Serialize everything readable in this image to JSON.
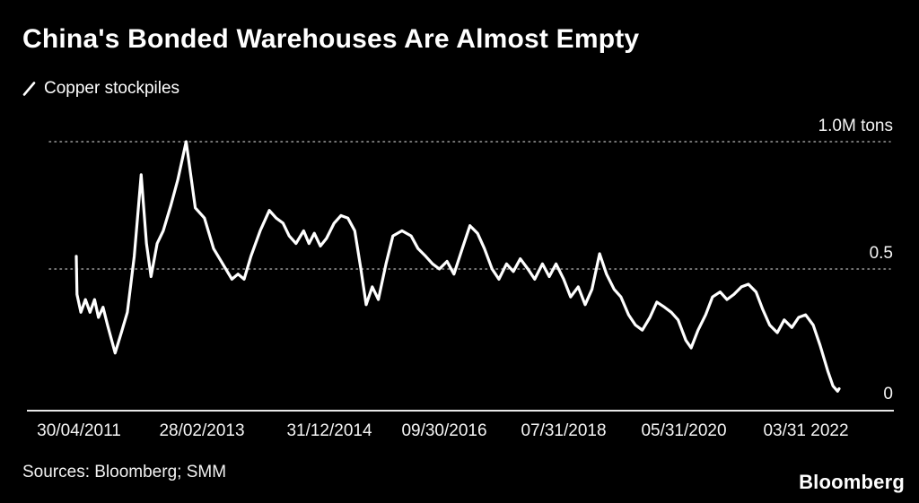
{
  "page": {
    "background": "#000000",
    "text_color": "#ffffff"
  },
  "header": {
    "title": "China's Bonded Warehouses Are Almost Empty",
    "legend": {
      "series_label": "Copper stockpiles",
      "series_color": "#ffffff"
    }
  },
  "footer": {
    "sources": "Sources: Bloomberg; SMM",
    "brand": "Bloomberg"
  },
  "chart_data": {
    "type": "line",
    "title": "China's Bonded Warehouses Are Almost Empty",
    "legend_position": "top-left",
    "grid": "dotted horizontal gridlines at 1.0 and 0.5",
    "series": [
      {
        "name": "Copper stockpiles",
        "color": "#ffffff",
        "unit": "M tons",
        "points": [
          [
            0.0,
            0.55
          ],
          [
            0.001,
            0.4
          ],
          [
            0.006,
            0.33
          ],
          [
            0.012,
            0.38
          ],
          [
            0.018,
            0.33
          ],
          [
            0.024,
            0.38
          ],
          [
            0.029,
            0.31
          ],
          [
            0.035,
            0.35
          ],
          [
            0.041,
            0.28
          ],
          [
            0.051,
            0.17
          ],
          [
            0.059,
            0.25
          ],
          [
            0.067,
            0.33
          ],
          [
            0.076,
            0.55
          ],
          [
            0.085,
            0.87
          ],
          [
            0.092,
            0.6
          ],
          [
            0.098,
            0.47
          ],
          [
            0.106,
            0.6
          ],
          [
            0.114,
            0.65
          ],
          [
            0.124,
            0.75
          ],
          [
            0.133,
            0.85
          ],
          [
            0.144,
            1.0
          ],
          [
            0.151,
            0.85
          ],
          [
            0.156,
            0.74
          ],
          [
            0.168,
            0.7
          ],
          [
            0.18,
            0.58
          ],
          [
            0.192,
            0.52
          ],
          [
            0.204,
            0.46
          ],
          [
            0.212,
            0.48
          ],
          [
            0.22,
            0.46
          ],
          [
            0.229,
            0.55
          ],
          [
            0.241,
            0.65
          ],
          [
            0.253,
            0.73
          ],
          [
            0.262,
            0.7
          ],
          [
            0.271,
            0.68
          ],
          [
            0.279,
            0.63
          ],
          [
            0.288,
            0.6
          ],
          [
            0.298,
            0.65
          ],
          [
            0.305,
            0.6
          ],
          [
            0.312,
            0.64
          ],
          [
            0.32,
            0.59
          ],
          [
            0.328,
            0.62
          ],
          [
            0.338,
            0.68
          ],
          [
            0.347,
            0.71
          ],
          [
            0.356,
            0.7
          ],
          [
            0.365,
            0.65
          ],
          [
            0.373,
            0.5
          ],
          [
            0.38,
            0.36
          ],
          [
            0.388,
            0.43
          ],
          [
            0.396,
            0.38
          ],
          [
            0.406,
            0.52
          ],
          [
            0.415,
            0.63
          ],
          [
            0.427,
            0.65
          ],
          [
            0.439,
            0.63
          ],
          [
            0.448,
            0.58
          ],
          [
            0.458,
            0.55
          ],
          [
            0.467,
            0.52
          ],
          [
            0.476,
            0.5
          ],
          [
            0.486,
            0.53
          ],
          [
            0.495,
            0.48
          ],
          [
            0.506,
            0.58
          ],
          [
            0.516,
            0.67
          ],
          [
            0.526,
            0.64
          ],
          [
            0.535,
            0.58
          ],
          [
            0.545,
            0.5
          ],
          [
            0.554,
            0.46
          ],
          [
            0.564,
            0.52
          ],
          [
            0.573,
            0.49
          ],
          [
            0.582,
            0.54
          ],
          [
            0.592,
            0.5
          ],
          [
            0.601,
            0.46
          ],
          [
            0.611,
            0.52
          ],
          [
            0.62,
            0.47
          ],
          [
            0.629,
            0.52
          ],
          [
            0.639,
            0.46
          ],
          [
            0.648,
            0.39
          ],
          [
            0.658,
            0.43
          ],
          [
            0.667,
            0.36
          ],
          [
            0.676,
            0.42
          ],
          [
            0.686,
            0.56
          ],
          [
            0.695,
            0.48
          ],
          [
            0.705,
            0.42
          ],
          [
            0.714,
            0.39
          ],
          [
            0.724,
            0.32
          ],
          [
            0.733,
            0.28
          ],
          [
            0.742,
            0.26
          ],
          [
            0.752,
            0.31
          ],
          [
            0.761,
            0.37
          ],
          [
            0.771,
            0.35
          ],
          [
            0.78,
            0.33
          ],
          [
            0.789,
            0.3
          ],
          [
            0.799,
            0.22
          ],
          [
            0.806,
            0.19
          ],
          [
            0.815,
            0.26
          ],
          [
            0.825,
            0.32
          ],
          [
            0.834,
            0.39
          ],
          [
            0.844,
            0.41
          ],
          [
            0.853,
            0.38
          ],
          [
            0.862,
            0.4
          ],
          [
            0.872,
            0.43
          ],
          [
            0.881,
            0.44
          ],
          [
            0.891,
            0.41
          ],
          [
            0.9,
            0.34
          ],
          [
            0.909,
            0.28
          ],
          [
            0.919,
            0.25
          ],
          [
            0.928,
            0.3
          ],
          [
            0.938,
            0.27
          ],
          [
            0.947,
            0.31
          ],
          [
            0.956,
            0.32
          ],
          [
            0.966,
            0.28
          ],
          [
            0.975,
            0.2
          ],
          [
            0.985,
            0.1
          ],
          [
            0.992,
            0.04
          ],
          [
            0.998,
            0.02
          ],
          [
            1.0,
            0.03
          ]
        ]
      }
    ],
    "x_axis": {
      "tick_labels": [
        "30/04/2011",
        "28/02/2013",
        "31/12/2014",
        "09/30/2016",
        "07/31/2018",
        "05/31/2020",
        "03/31 2022"
      ],
      "tick_positions": [
        0.004,
        0.165,
        0.332,
        0.482,
        0.639,
        0.796,
        0.956
      ]
    },
    "y_axis": {
      "range": [
        0,
        1.0
      ],
      "gridline_values": [
        1.0,
        0.5
      ],
      "ticks": [
        {
          "label": "1.0M tons",
          "value": 1.0
        },
        {
          "label": "0.5",
          "value": 0.5
        },
        {
          "label": "0",
          "value": 0
        }
      ]
    }
  }
}
